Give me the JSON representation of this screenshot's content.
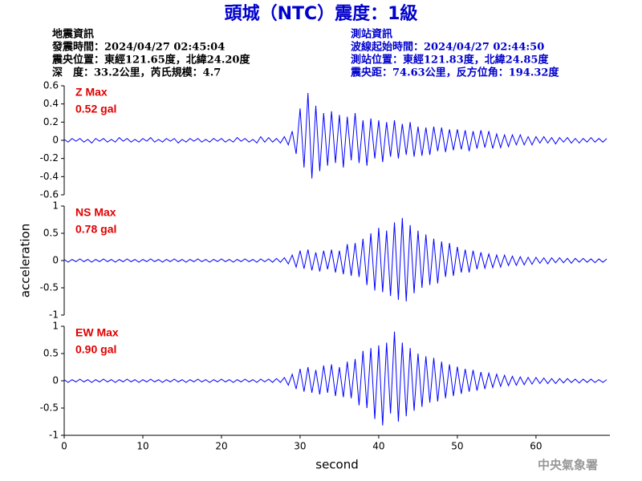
{
  "header": {
    "title": "頭城（NTC）震度：1級",
    "left": [
      "地震資訊",
      "發震時間：2024/04/27 02:45:04",
      "震央位置：東經121.65度，北緯24.20度",
      "深　度：33.2公里，芮氏規模：4.7"
    ],
    "right": [
      "測站資訊",
      "波線起始時間：2024/04/27 02:44:50",
      "測站位置：東經121.83度，北緯24.85度",
      "震央距：74.63公里，反方位角：194.32度"
    ],
    "watermark": "中央氣象署"
  },
  "chart_data": [
    {
      "type": "line",
      "color": "#0000ff",
      "annotations": [
        "Z Max",
        "0.52 gal"
      ],
      "xlim": [
        0,
        69.4
      ],
      "ylim": [
        -0.6,
        0.6
      ],
      "yticks": [
        0.6,
        0.4,
        0.2,
        0,
        -0.2,
        -0.4,
        -0.6
      ],
      "x": [
        0,
        0.5,
        1,
        1.5,
        2,
        2.5,
        3,
        3.5,
        4,
        4.5,
        5,
        5.5,
        6,
        6.5,
        7,
        7.5,
        8,
        8.5,
        9,
        9.5,
        10,
        10.5,
        11,
        11.5,
        12,
        12.5,
        13,
        13.5,
        14,
        14.5,
        15,
        15.5,
        16,
        16.5,
        17,
        17.5,
        18,
        18.5,
        19,
        19.5,
        20,
        20.5,
        21,
        21.5,
        22,
        22.5,
        23,
        23.5,
        24,
        24.5,
        25,
        25.5,
        26,
        26.5,
        27,
        27.5,
        28,
        28.5,
        29,
        29.5,
        30,
        30.5,
        31,
        31.5,
        32,
        32.5,
        33,
        33.5,
        34,
        34.5,
        35,
        35.5,
        36,
        36.5,
        37,
        37.5,
        38,
        38.5,
        39,
        39.5,
        40,
        40.5,
        41,
        41.5,
        42,
        42.5,
        43,
        43.5,
        44,
        44.5,
        45,
        45.5,
        46,
        46.5,
        47,
        47.5,
        48,
        48.5,
        49,
        49.5,
        50,
        50.5,
        51,
        51.5,
        52,
        52.5,
        53,
        53.5,
        54,
        54.5,
        55,
        55.5,
        56,
        56.5,
        57,
        57.5,
        58,
        58.5,
        59,
        59.5,
        60,
        60.5,
        61,
        61.5,
        62,
        62.5,
        63,
        63.5,
        64,
        64.5,
        65,
        65.5,
        66,
        66.5,
        67,
        67.5,
        68,
        68.5,
        69
      ],
      "values": [
        0.01,
        -0.02,
        0.02,
        -0.01,
        0.02,
        -0.02,
        0.01,
        -0.03,
        0.02,
        -0.01,
        0.02,
        -0.02,
        0.01,
        -0.02,
        0.03,
        -0.01,
        0.02,
        -0.02,
        0.01,
        -0.02,
        0.02,
        -0.01,
        0.03,
        -0.02,
        0.01,
        -0.02,
        0.02,
        -0.01,
        0.02,
        -0.03,
        0.01,
        -0.02,
        0.02,
        -0.01,
        0.02,
        -0.02,
        0.01,
        -0.02,
        0.02,
        -0.01,
        0.02,
        -0.02,
        0.01,
        -0.02,
        0.03,
        -0.01,
        0.02,
        -0.02,
        0.01,
        -0.03,
        0.04,
        -0.02,
        0.03,
        -0.02,
        0.02,
        -0.03,
        0.04,
        -0.05,
        0.1,
        -0.15,
        0.35,
        -0.3,
        0.52,
        -0.42,
        0.38,
        -0.34,
        0.3,
        -0.28,
        0.32,
        -0.25,
        0.28,
        -0.3,
        0.26,
        -0.22,
        0.3,
        -0.25,
        0.22,
        -0.28,
        0.24,
        -0.2,
        0.22,
        -0.24,
        0.2,
        -0.18,
        0.22,
        -0.2,
        0.18,
        -0.16,
        0.2,
        -0.18,
        0.15,
        -0.17,
        0.14,
        -0.16,
        0.15,
        -0.12,
        0.14,
        -0.13,
        0.12,
        -0.11,
        0.12,
        -0.1,
        0.11,
        -0.12,
        0.1,
        -0.09,
        0.11,
        -0.08,
        0.1,
        -0.09,
        0.07,
        -0.08,
        0.06,
        -0.07,
        0.06,
        -0.05,
        0.06,
        -0.05,
        0.04,
        -0.05,
        0.04,
        -0.03,
        0.04,
        -0.03,
        0.03,
        -0.04,
        0.03,
        -0.02,
        0.03,
        -0.03,
        0.02,
        -0.03,
        0.02,
        -0.02,
        0.03,
        -0.02,
        0.02,
        -0.02,
        0.02
      ]
    },
    {
      "type": "line",
      "color": "#0000ff",
      "annotations": [
        "NS Max",
        "0.78 gal"
      ],
      "ylabel": "acceleration",
      "xlim": [
        0,
        69.4
      ],
      "ylim": [
        -1,
        1
      ],
      "yticks": [
        1,
        0.5,
        0,
        -0.5,
        -1
      ],
      "x": [
        0,
        0.5,
        1,
        1.5,
        2,
        2.5,
        3,
        3.5,
        4,
        4.5,
        5,
        5.5,
        6,
        6.5,
        7,
        7.5,
        8,
        8.5,
        9,
        9.5,
        10,
        10.5,
        11,
        11.5,
        12,
        12.5,
        13,
        13.5,
        14,
        14.5,
        15,
        15.5,
        16,
        16.5,
        17,
        17.5,
        18,
        18.5,
        19,
        19.5,
        20,
        20.5,
        21,
        21.5,
        22,
        22.5,
        23,
        23.5,
        24,
        24.5,
        25,
        25.5,
        26,
        26.5,
        27,
        27.5,
        28,
        28.5,
        29,
        29.5,
        30,
        30.5,
        31,
        31.5,
        32,
        32.5,
        33,
        33.5,
        34,
        34.5,
        35,
        35.5,
        36,
        36.5,
        37,
        37.5,
        38,
        38.5,
        39,
        39.5,
        40,
        40.5,
        41,
        41.5,
        42,
        42.5,
        43,
        43.5,
        44,
        44.5,
        45,
        45.5,
        46,
        46.5,
        47,
        47.5,
        48,
        48.5,
        49,
        49.5,
        50,
        50.5,
        51,
        51.5,
        52,
        52.5,
        53,
        53.5,
        54,
        54.5,
        55,
        55.5,
        56,
        56.5,
        57,
        57.5,
        58,
        58.5,
        59,
        59.5,
        60,
        60.5,
        61,
        61.5,
        62,
        62.5,
        63,
        63.5,
        64,
        64.5,
        65,
        65.5,
        66,
        66.5,
        67,
        67.5,
        68,
        68.5,
        69
      ],
      "values": [
        0.02,
        -0.03,
        0.02,
        -0.02,
        0.03,
        -0.02,
        0.02,
        -0.03,
        0.02,
        -0.02,
        0.03,
        -0.02,
        0.02,
        -0.03,
        0.02,
        -0.02,
        0.03,
        -0.02,
        0.02,
        -0.03,
        0.02,
        -0.02,
        0.03,
        -0.02,
        0.02,
        -0.03,
        0.02,
        -0.02,
        0.03,
        -0.02,
        0.02,
        -0.03,
        0.02,
        -0.02,
        0.03,
        -0.02,
        0.02,
        -0.03,
        0.02,
        -0.02,
        0.03,
        -0.02,
        0.02,
        -0.03,
        0.02,
        -0.02,
        0.03,
        -0.02,
        0.02,
        -0.03,
        0.03,
        -0.02,
        0.03,
        -0.03,
        0.04,
        -0.03,
        0.05,
        -0.06,
        0.1,
        -0.12,
        0.18,
        -0.15,
        0.2,
        -0.18,
        0.15,
        -0.2,
        0.18,
        -0.16,
        0.2,
        -0.22,
        0.18,
        -0.25,
        0.3,
        -0.28,
        0.32,
        -0.3,
        0.4,
        -0.45,
        0.5,
        -0.55,
        0.6,
        -0.58,
        0.55,
        -0.65,
        0.7,
        -0.72,
        0.78,
        -0.75,
        0.65,
        -0.6,
        0.55,
        -0.5,
        0.48,
        -0.45,
        0.4,
        -0.42,
        0.35,
        -0.3,
        0.32,
        -0.28,
        0.25,
        -0.22,
        0.2,
        -0.22,
        0.18,
        -0.16,
        0.15,
        -0.14,
        0.12,
        -0.13,
        0.1,
        -0.12,
        0.1,
        -0.09,
        0.08,
        -0.09,
        0.07,
        -0.08,
        0.06,
        -0.07,
        0.06,
        -0.05,
        0.05,
        -0.06,
        0.05,
        -0.04,
        0.05,
        -0.04,
        0.04,
        -0.05,
        0.04,
        -0.03,
        0.04,
        -0.03,
        0.03,
        -0.04,
        0.03,
        -0.03,
        0.03
      ]
    },
    {
      "type": "line",
      "color": "#0000ff",
      "annotations": [
        "EW Max",
        "0.90 gal"
      ],
      "xlabel": "second",
      "xlim": [
        0,
        69.4
      ],
      "ylim": [
        -1,
        1
      ],
      "yticks": [
        1,
        0.5,
        0,
        -0.5,
        -1
      ],
      "xticks": [
        0,
        10,
        20,
        30,
        40,
        50,
        60
      ],
      "x": [
        0,
        0.5,
        1,
        1.5,
        2,
        2.5,
        3,
        3.5,
        4,
        4.5,
        5,
        5.5,
        6,
        6.5,
        7,
        7.5,
        8,
        8.5,
        9,
        9.5,
        10,
        10.5,
        11,
        11.5,
        12,
        12.5,
        13,
        13.5,
        14,
        14.5,
        15,
        15.5,
        16,
        16.5,
        17,
        17.5,
        18,
        18.5,
        19,
        19.5,
        20,
        20.5,
        21,
        21.5,
        22,
        22.5,
        23,
        23.5,
        24,
        24.5,
        25,
        25.5,
        26,
        26.5,
        27,
        27.5,
        28,
        28.5,
        29,
        29.5,
        30,
        30.5,
        31,
        31.5,
        32,
        32.5,
        33,
        33.5,
        34,
        34.5,
        35,
        35.5,
        36,
        36.5,
        37,
        37.5,
        38,
        38.5,
        39,
        39.5,
        40,
        40.5,
        41,
        41.5,
        42,
        42.5,
        43,
        43.5,
        44,
        44.5,
        45,
        45.5,
        46,
        46.5,
        47,
        47.5,
        48,
        48.5,
        49,
        49.5,
        50,
        50.5,
        51,
        51.5,
        52,
        52.5,
        53,
        53.5,
        54,
        54.5,
        55,
        55.5,
        56,
        56.5,
        57,
        57.5,
        58,
        58.5,
        59,
        59.5,
        60,
        60.5,
        61,
        61.5,
        62,
        62.5,
        63,
        63.5,
        64,
        64.5,
        65,
        65.5,
        66,
        66.5,
        67,
        67.5,
        68,
        68.5,
        69
      ],
      "values": [
        0.02,
        -0.03,
        0.02,
        -0.02,
        0.03,
        -0.02,
        0.02,
        -0.03,
        0.02,
        -0.02,
        0.03,
        -0.02,
        0.02,
        -0.03,
        0.02,
        -0.02,
        0.03,
        -0.02,
        0.02,
        -0.03,
        0.02,
        -0.02,
        0.03,
        -0.02,
        0.02,
        -0.03,
        0.02,
        -0.02,
        0.03,
        -0.02,
        0.02,
        -0.03,
        0.02,
        -0.02,
        0.03,
        -0.02,
        0.02,
        -0.03,
        0.02,
        -0.02,
        0.03,
        -0.02,
        0.02,
        -0.03,
        0.02,
        -0.02,
        0.03,
        -0.02,
        0.02,
        -0.03,
        0.03,
        -0.02,
        0.03,
        -0.03,
        0.04,
        -0.03,
        0.06,
        -0.08,
        0.12,
        -0.15,
        0.22,
        -0.2,
        0.25,
        -0.22,
        0.2,
        -0.25,
        0.28,
        -0.22,
        0.3,
        -0.28,
        0.25,
        -0.3,
        0.35,
        -0.32,
        0.4,
        -0.45,
        0.55,
        -0.5,
        0.6,
        -0.7,
        0.65,
        -0.82,
        0.7,
        -0.6,
        0.9,
        -0.75,
        0.7,
        -0.65,
        0.6,
        -0.55,
        0.5,
        -0.48,
        0.45,
        -0.4,
        0.42,
        -0.38,
        0.35,
        -0.32,
        0.3,
        -0.28,
        0.26,
        -0.24,
        0.22,
        -0.2,
        0.2,
        -0.18,
        0.16,
        -0.15,
        0.14,
        -0.12,
        0.12,
        -0.1,
        0.1,
        -0.09,
        0.08,
        -0.08,
        0.07,
        -0.07,
        0.06,
        -0.06,
        0.06,
        -0.05,
        0.05,
        -0.05,
        0.04,
        -0.05,
        0.04,
        -0.04,
        0.04,
        -0.03,
        0.03,
        -0.04,
        0.03,
        -0.03,
        0.03,
        -0.03,
        0.02,
        -0.03,
        0.02
      ]
    }
  ]
}
